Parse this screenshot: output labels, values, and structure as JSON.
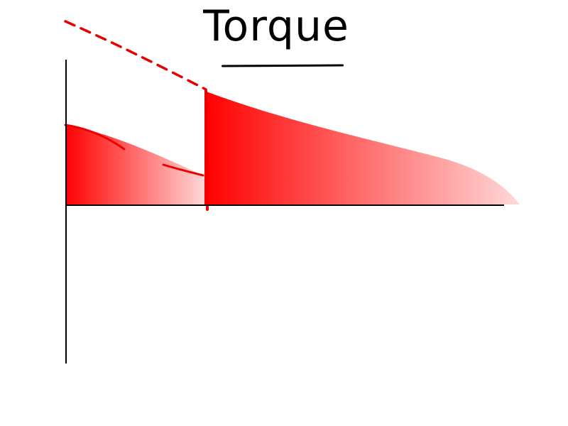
{
  "title": "Torque",
  "colors": {
    "fill_strong": "#ff0000",
    "fill_light": "#ffd9d9",
    "axis": "#000000",
    "dashed_line": "#e60000",
    "background": "#ffffff"
  }
}
